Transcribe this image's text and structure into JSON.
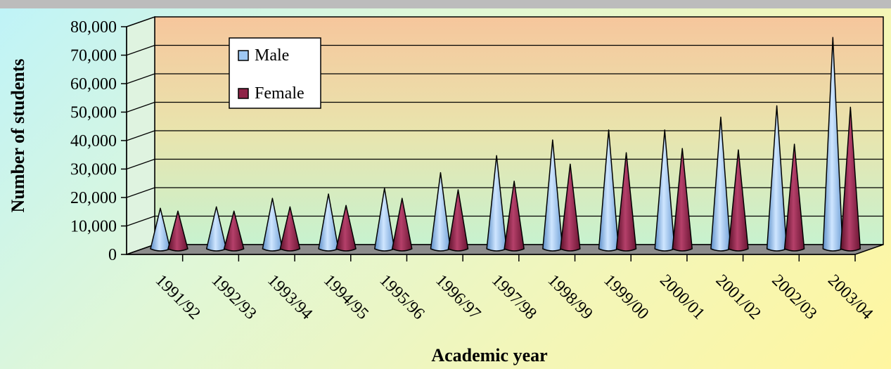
{
  "chart_data": {
    "type": "bar",
    "style": "3d-cone",
    "categories": [
      "1991/92",
      "1992/93",
      "1993/94",
      "1994/95",
      "1995/96",
      "1996/97",
      "1997/98",
      "1998/99",
      "1999/00",
      "2000/01",
      "2001/02",
      "2002/03",
      "2003/04"
    ],
    "series": [
      {
        "name": "Male",
        "color": "#9ec8f4",
        "values": [
          14500,
          15000,
          18000,
          19500,
          21500,
          27000,
          33000,
          38500,
          42000,
          42000,
          46500,
          50500,
          74500
        ]
      },
      {
        "name": "Female",
        "color": "#8e2447",
        "values": [
          13500,
          13500,
          15000,
          15500,
          18000,
          21000,
          24000,
          30000,
          34000,
          35500,
          35000,
          37000,
          50000
        ]
      }
    ],
    "xlabel": "Academic year",
    "ylabel": "Number of students",
    "ylim": [
      0,
      80000
    ],
    "yticks": [
      "0",
      "10,000",
      "20,000",
      "30,000",
      "40,000",
      "50,000",
      "60,000",
      "70,000",
      "80,000"
    ],
    "grid": true,
    "legend_position": "top-left"
  }
}
